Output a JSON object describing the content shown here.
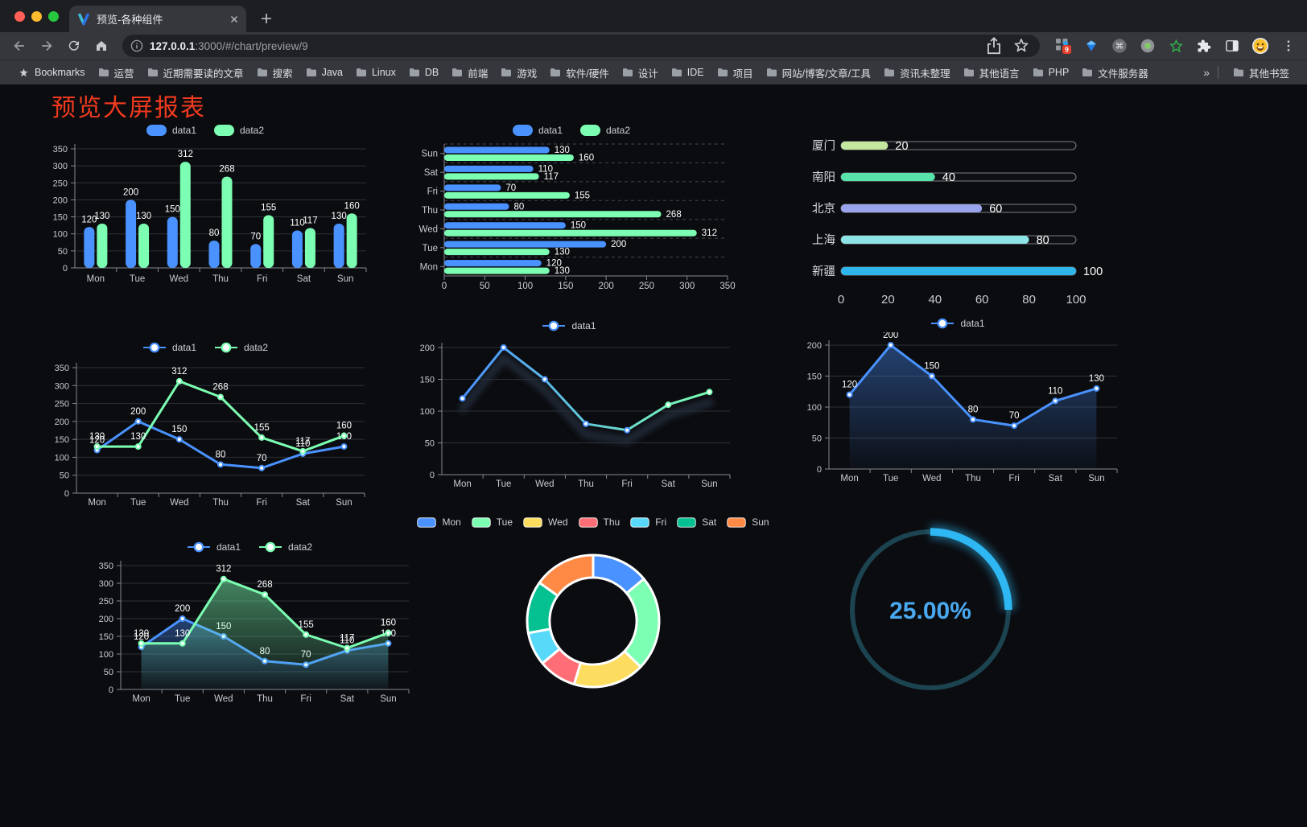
{
  "browser": {
    "tab_title": "预览-各种组件",
    "url_host": "127.0.0.1",
    "url_rest": ":3000/#/chart/preview/9",
    "extension_badge": "9",
    "bookmarks_label": "Bookmarks",
    "bookmarks": [
      "运营",
      "近期需要读的文章",
      "搜索",
      "Java",
      "Linux",
      "DB",
      "前端",
      "游戏",
      "软件/硬件",
      "设计",
      "IDE",
      "项目",
      "网站/博客/文章/工具",
      "资讯未整理",
      "其他语言",
      "PHP",
      "文件服务器"
    ],
    "bookmarks_overflow": "»",
    "other_bookmarks": "其他书签"
  },
  "page": {
    "title": "预览大屏报表",
    "title_color": "#f13a1e",
    "background": "#0b0c10"
  },
  "chart_data": [
    {
      "id": "bar-vertical",
      "type": "bar",
      "categories": [
        "Mon",
        "Tue",
        "Wed",
        "Thu",
        "Fri",
        "Sat",
        "Sun"
      ],
      "series": [
        {
          "name": "data1",
          "color": "#4992ff",
          "values": [
            120,
            200,
            150,
            80,
            70,
            110,
            130
          ]
        },
        {
          "name": "data2",
          "color": "#7cffb2",
          "values": [
            130,
            130,
            312,
            268,
            155,
            117,
            160
          ]
        }
      ],
      "ylim": [
        0,
        350
      ],
      "ytick_step": 50,
      "value_labels": true,
      "legend_position": "top",
      "grid": true
    },
    {
      "id": "bar-horizontal",
      "type": "bar-horizontal",
      "categories": [
        "Mon",
        "Tue",
        "Wed",
        "Thu",
        "Fri",
        "Sat",
        "Sun"
      ],
      "display_top_to_bottom": [
        "Sun",
        "Sat",
        "Fri",
        "Thu",
        "Wed",
        "Tue",
        "Mon"
      ],
      "series": [
        {
          "name": "data1",
          "color": "#4992ff",
          "values": [
            120,
            200,
            150,
            80,
            70,
            110,
            130
          ]
        },
        {
          "name": "data2",
          "color": "#7cffb2",
          "values": [
            130,
            130,
            312,
            268,
            155,
            117,
            160
          ]
        }
      ],
      "xlim": [
        0,
        350
      ],
      "xtick_step": 50,
      "value_labels": true,
      "legend_position": "top",
      "grid": true
    },
    {
      "id": "progress",
      "type": "progress",
      "items": [
        {
          "label": "厦门",
          "value": 20,
          "color": "#c4e79f"
        },
        {
          "label": "南阳",
          "value": 40,
          "color": "#57e3a9"
        },
        {
          "label": "北京",
          "value": 60,
          "color": "#9aa4ec"
        },
        {
          "label": "上海",
          "value": 80,
          "color": "#8ce5e4"
        },
        {
          "label": "新疆",
          "value": 100,
          "color": "#2eb5e9"
        }
      ],
      "max": 100,
      "axis_ticks": [
        0,
        20,
        40,
        60,
        80,
        100
      ]
    },
    {
      "id": "line-dual",
      "type": "line",
      "categories": [
        "Mon",
        "Tue",
        "Wed",
        "Thu",
        "Fri",
        "Sat",
        "Sun"
      ],
      "series": [
        {
          "name": "data1",
          "color": "#4992ff",
          "values": [
            120,
            200,
            150,
            80,
            70,
            110,
            130
          ]
        },
        {
          "name": "data2",
          "color": "#7cffb2",
          "values": [
            130,
            130,
            312,
            268,
            155,
            117,
            160
          ]
        }
      ],
      "ylim": [
        0,
        350
      ],
      "ytick_step": 50,
      "value_labels": true,
      "legend_position": "top",
      "grid": true
    },
    {
      "id": "line-gradient",
      "type": "line",
      "categories": [
        "Mon",
        "Tue",
        "Wed",
        "Thu",
        "Fri",
        "Sat",
        "Sun"
      ],
      "series": [
        {
          "name": "data1",
          "color_start": "#4992ff",
          "color_end": "#7cffb2",
          "values": [
            120,
            200,
            150,
            80,
            70,
            110,
            130
          ],
          "shadow": true
        }
      ],
      "ylim": [
        0,
        200
      ],
      "ytick_step": 50,
      "value_labels": false,
      "legend_position": "top",
      "grid": true
    },
    {
      "id": "area-blue",
      "type": "line",
      "categories": [
        "Mon",
        "Tue",
        "Wed",
        "Thu",
        "Fri",
        "Sat",
        "Sun"
      ],
      "series": [
        {
          "name": "data1",
          "color": "#4992ff",
          "values": [
            120,
            200,
            150,
            80,
            70,
            110,
            130
          ],
          "area": true
        }
      ],
      "ylim": [
        0,
        200
      ],
      "ytick_step": 50,
      "value_labels": true,
      "legend_position": "top",
      "grid": true
    },
    {
      "id": "area-dual",
      "type": "line",
      "categories": [
        "Mon",
        "Tue",
        "Wed",
        "Thu",
        "Fri",
        "Sat",
        "Sun"
      ],
      "series": [
        {
          "name": "data1",
          "color": "#4992ff",
          "values": [
            120,
            200,
            150,
            80,
            70,
            110,
            130
          ],
          "area": true
        },
        {
          "name": "data2",
          "color": "#7cffb2",
          "values": [
            130,
            130,
            312,
            268,
            155,
            117,
            160
          ],
          "area": true
        }
      ],
      "ylim": [
        0,
        350
      ],
      "ytick_step": 50,
      "value_labels": true,
      "legend_position": "top",
      "grid": true
    },
    {
      "id": "donut",
      "type": "pie",
      "items": [
        {
          "label": "Mon",
          "value": 120,
          "color": "#4992ff"
        },
        {
          "label": "Tue",
          "value": 200,
          "color": "#7cffb2"
        },
        {
          "label": "Wed",
          "value": 150,
          "color": "#fddd60"
        },
        {
          "label": "Thu",
          "value": 80,
          "color": "#ff6e76"
        },
        {
          "label": "Fri",
          "value": 70,
          "color": "#58d9f9"
        },
        {
          "label": "Sat",
          "value": 110,
          "color": "#05c091"
        },
        {
          "label": "Sun",
          "value": 130,
          "color": "#ff8a45"
        }
      ],
      "inner_radius_ratio": 0.66,
      "legend_position": "top"
    },
    {
      "id": "gauge",
      "type": "gauge",
      "value_percent": 25,
      "display": "25.00%",
      "color": "#2eb7f2",
      "track_color": "#1c4350",
      "text_color": "#4aa8ef"
    }
  ]
}
